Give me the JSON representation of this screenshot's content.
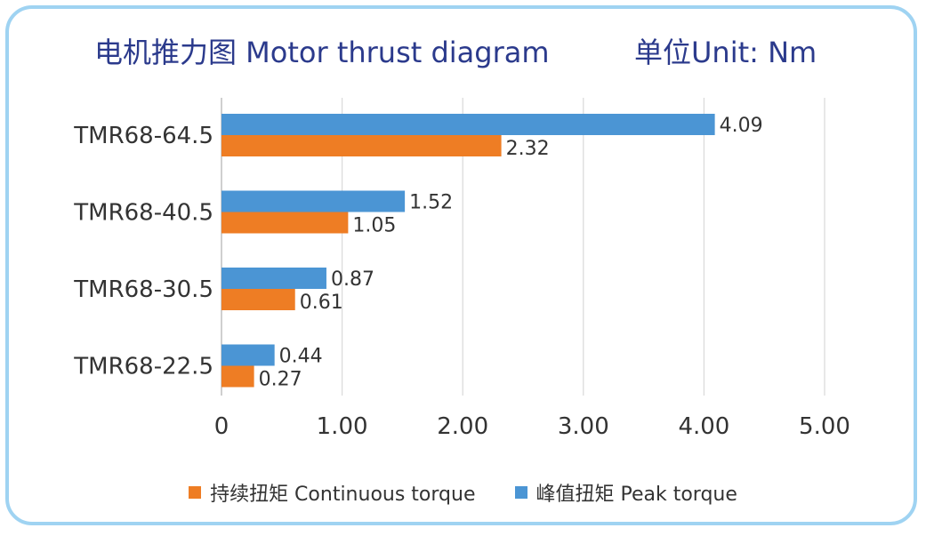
{
  "header": {
    "title": "电机推力图 Motor thrust diagram",
    "unit": "单位Unit: Nm"
  },
  "colors": {
    "continuous": "#ee7d24",
    "peak": "#4b95d4",
    "grid": "#d9d9d9",
    "border": "#9fd3f2",
    "title": "#2b3a8c"
  },
  "chart_data": {
    "type": "bar",
    "orientation": "horizontal",
    "title": "电机推力图 Motor thrust diagram",
    "unit_label": "单位Unit: Nm",
    "categories": [
      "TMR68-64.5",
      "TMR68-40.5",
      "TMR68-30.5",
      "TMR68-22.5"
    ],
    "series": [
      {
        "name": "峰值扭矩 Peak torque",
        "key": "peak",
        "values": [
          4.09,
          1.52,
          0.87,
          0.44
        ]
      },
      {
        "name": "持续扭矩 Continuous torque",
        "key": "continuous",
        "values": [
          2.32,
          1.05,
          0.61,
          0.27
        ]
      }
    ],
    "value_labels": {
      "peak": [
        "4.09",
        "1.52",
        "0.87",
        "0.44"
      ],
      "continuous": [
        "2.32",
        "1.05",
        "0.61",
        "0.27"
      ]
    },
    "xlim": [
      0,
      5
    ],
    "xticks": [
      "0",
      "1.00",
      "2.00",
      "3.00",
      "4.00",
      "5.00"
    ],
    "grid": "vertical",
    "legend": "bottom"
  },
  "legend": {
    "items": [
      {
        "label": "持续扭矩 Continuous torque",
        "key": "continuous"
      },
      {
        "label": "峰值扭矩 Peak torque",
        "key": "peak"
      }
    ]
  }
}
